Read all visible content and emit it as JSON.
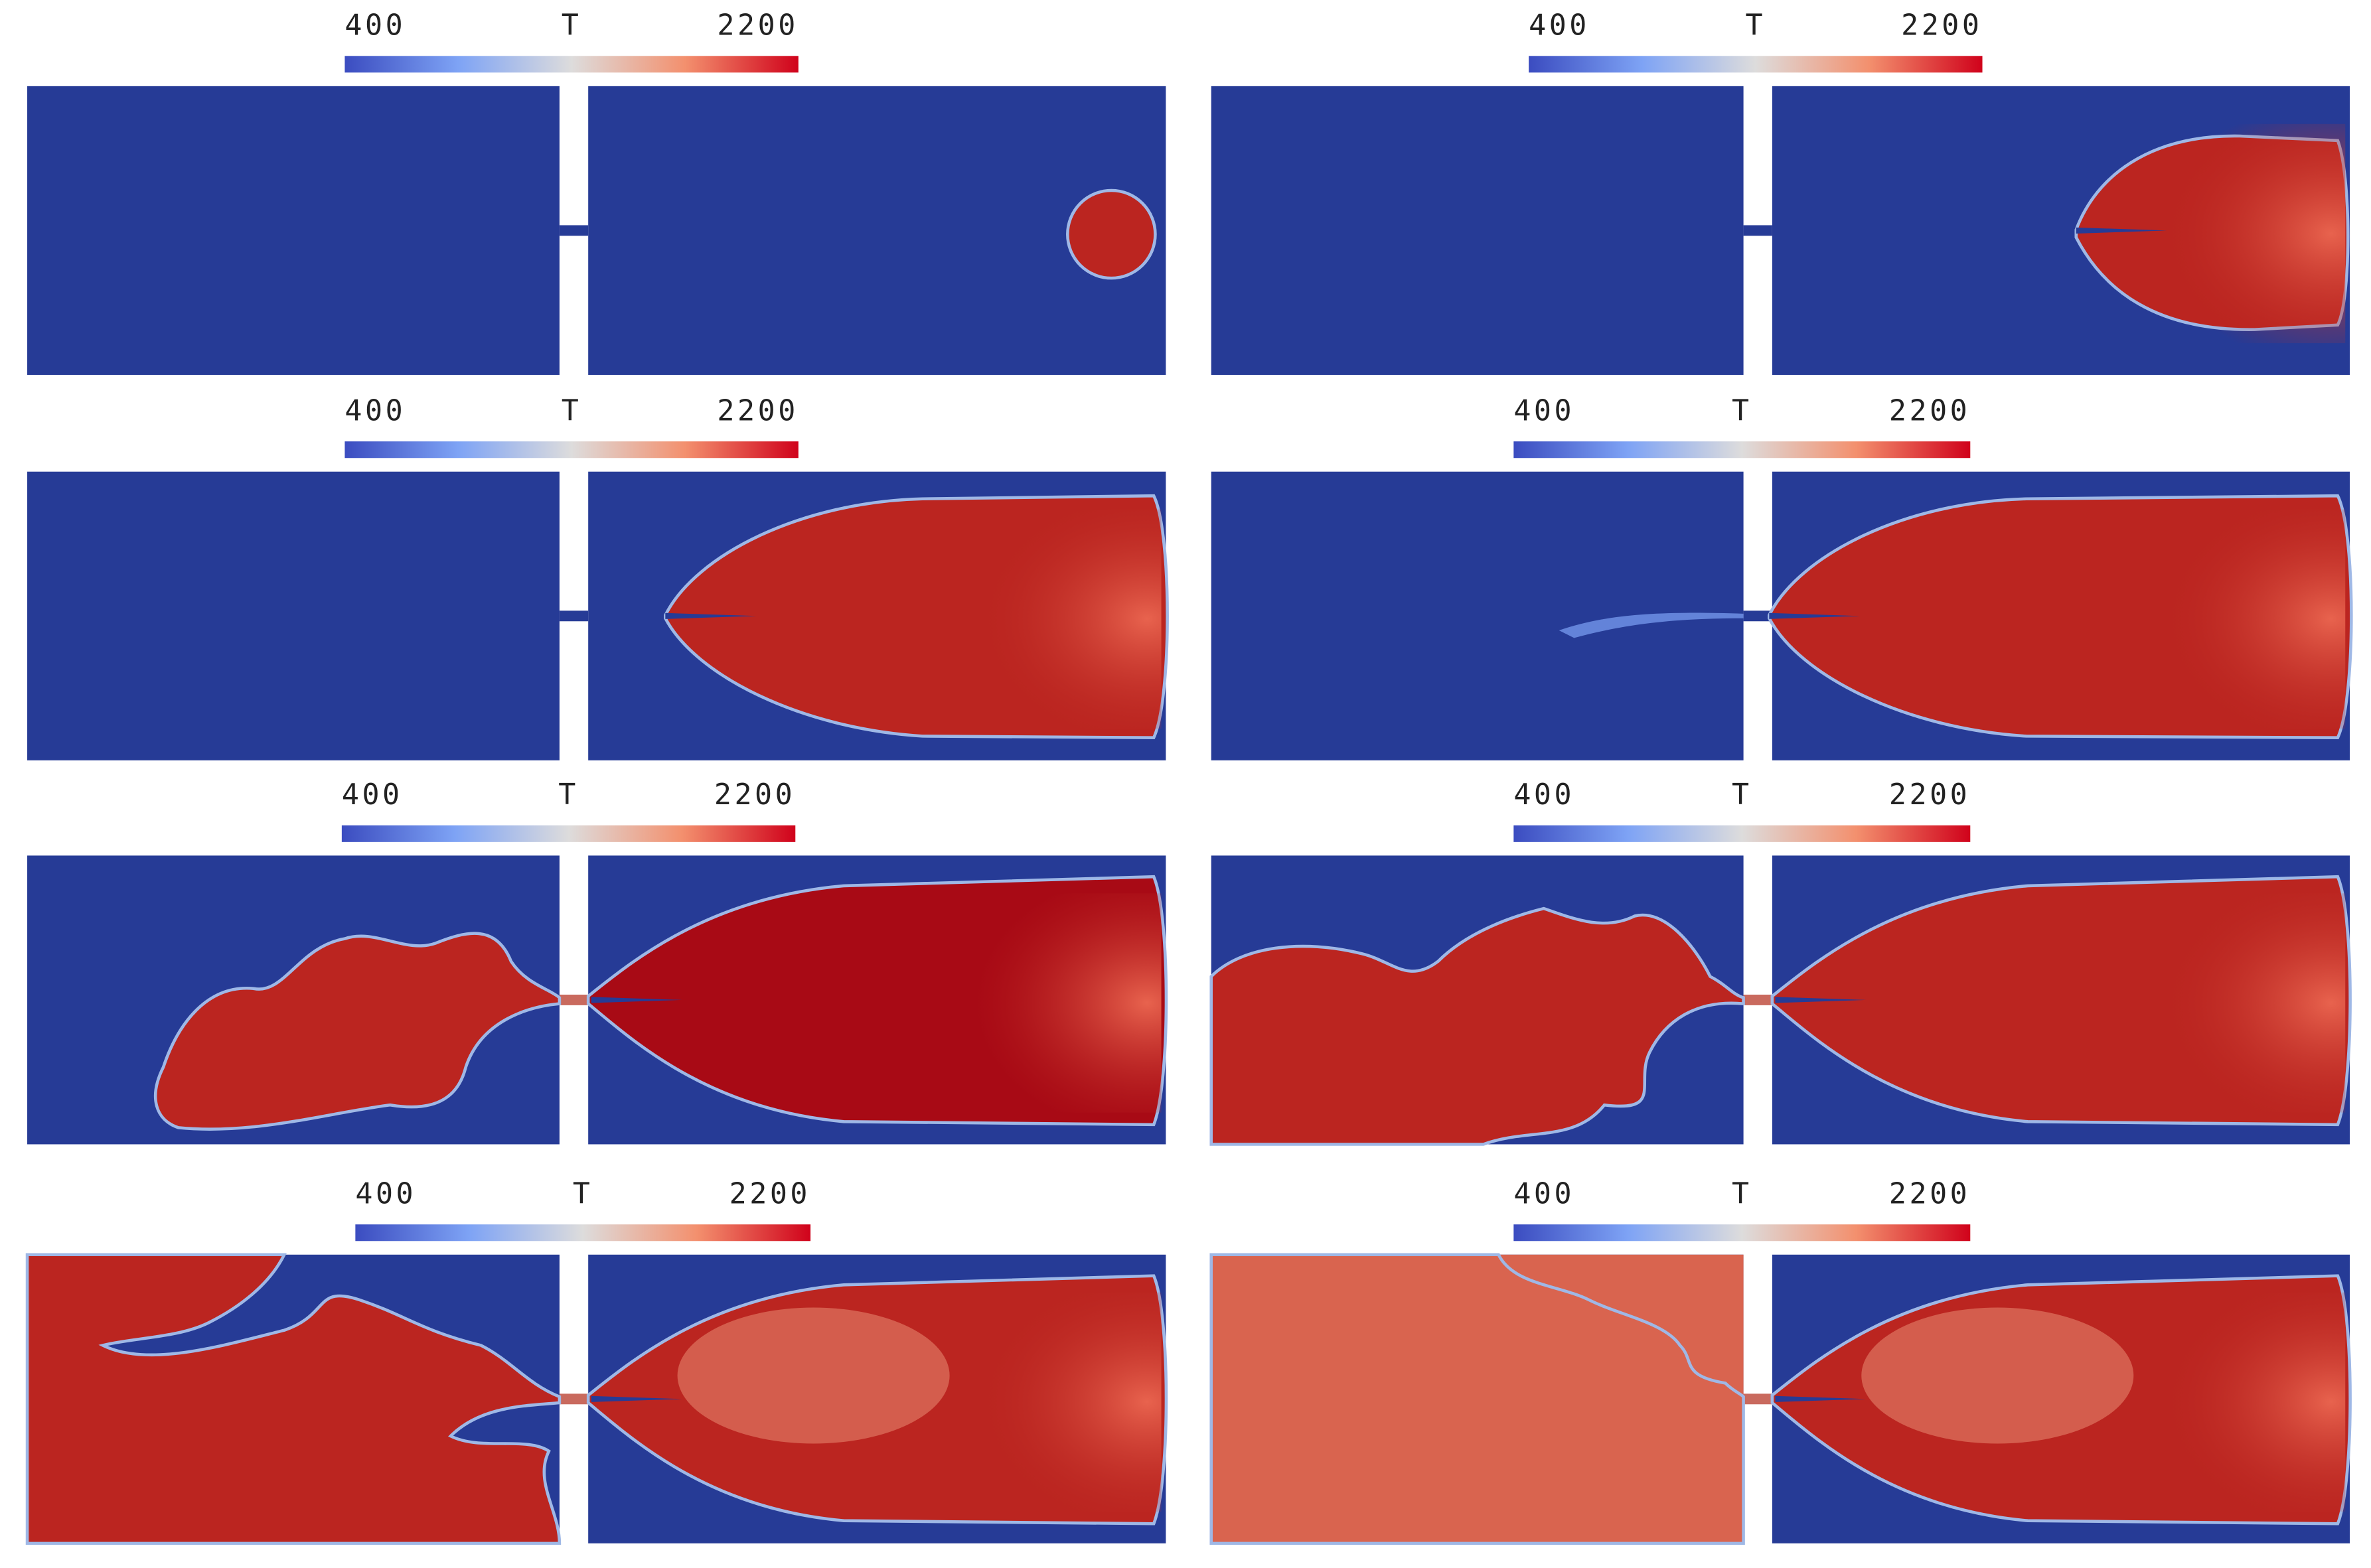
{
  "panels": [
    {
      "colorbar": {
        "min": 400,
        "label": "T",
        "max": 2200
      }
    },
    {
      "colorbar": {
        "min": 400,
        "label": "T",
        "max": 2200
      }
    },
    {
      "colorbar": {
        "min": 400,
        "label": "T",
        "max": 2200
      }
    },
    {
      "colorbar": {
        "min": 400,
        "label": "T",
        "max": 2200
      }
    },
    {
      "colorbar": {
        "min": 400,
        "label": "T",
        "max": 2200
      }
    },
    {
      "colorbar": {
        "min": 400,
        "label": "T",
        "max": 2200
      }
    },
    {
      "colorbar": {
        "min": 400,
        "label": "T",
        "max": 2200
      }
    },
    {
      "colorbar": {
        "min": 400,
        "label": "T",
        "max": 2200
      }
    }
  ]
}
